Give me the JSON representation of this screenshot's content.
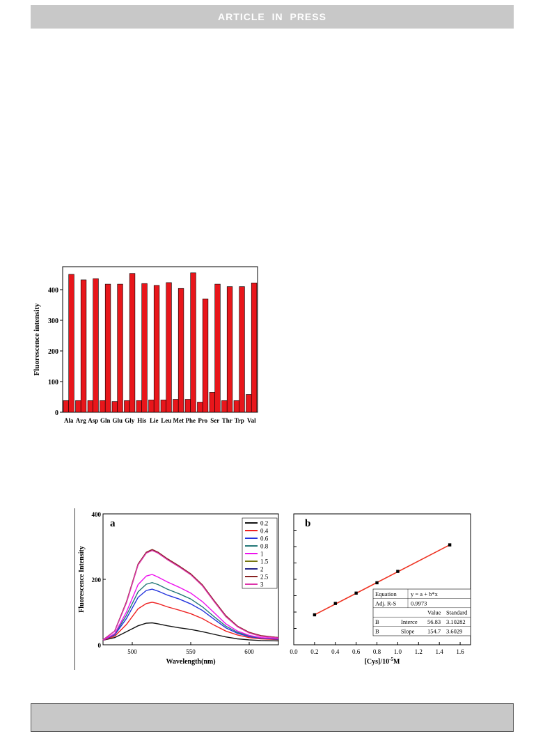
{
  "header": {
    "banner": "ARTICLE IN PRESS"
  },
  "chart_data": [
    {
      "type": "bar",
      "ylabel": "Fluorescence intensity",
      "xlabel": "",
      "ylim": [
        0,
        475
      ],
      "yticks": [
        0,
        100,
        200,
        300,
        400
      ],
      "categories": [
        "Ala",
        "Arg",
        "Asp",
        "Gln",
        "Glu",
        "Gly",
        "His",
        "Lie",
        "Leu",
        "Met",
        "Phe",
        "Pro",
        "Ser",
        "Thr",
        "Trp",
        "Val"
      ],
      "series": [
        {
          "values": [
            38,
            38,
            38,
            38,
            35,
            38,
            38,
            40,
            40,
            42,
            42,
            33,
            65,
            38,
            38,
            58
          ]
        },
        {
          "values": [
            450,
            432,
            436,
            418,
            418,
            453,
            420,
            414,
            423,
            404,
            455,
            370,
            418,
            410,
            410,
            422
          ]
        }
      ],
      "grid": false,
      "color": "#e8161b"
    },
    {
      "type": "line",
      "panel_label": "a",
      "xlabel": "Wavelength(nm)",
      "ylabel": "Fluorescence Intensity",
      "xlim": [
        475,
        625
      ],
      "ylim": [
        0,
        400
      ],
      "xticks": [
        500,
        550,
        600
      ],
      "yticks": [
        0,
        200,
        400
      ],
      "legend_position": "top-right",
      "x": [
        475,
        485,
        495,
        505,
        512,
        517,
        522,
        530,
        540,
        550,
        560,
        570,
        580,
        590,
        600,
        610,
        625
      ],
      "series": [
        {
          "name": "0.2",
          "color": "#111111",
          "values": [
            14,
            22,
            40,
            58,
            66,
            67,
            64,
            58,
            52,
            47,
            40,
            32,
            24,
            18,
            15,
            13,
            12
          ]
        },
        {
          "name": "0.4",
          "color": "#ee2222",
          "values": [
            14,
            26,
            62,
            110,
            126,
            130,
            126,
            116,
            106,
            95,
            80,
            60,
            42,
            30,
            22,
            18,
            16
          ]
        },
        {
          "name": "0.6",
          "color": "#2233dd",
          "values": [
            14,
            30,
            80,
            145,
            166,
            170,
            164,
            152,
            140,
            125,
            105,
            78,
            52,
            35,
            25,
            20,
            17
          ]
        },
        {
          "name": "0.8",
          "color": "#227777",
          "values": [
            14,
            32,
            90,
            162,
            185,
            190,
            184,
            170,
            156,
            140,
            116,
            86,
            57,
            38,
            27,
            21,
            18
          ]
        },
        {
          "name": "1",
          "color": "#ee11ee",
          "values": [
            14,
            34,
            100,
            184,
            210,
            215,
            207,
            192,
            176,
            158,
            132,
            98,
            64,
            42,
            29,
            22,
            19
          ]
        },
        {
          "name": "1.5",
          "color": "#777711",
          "values": [
            15,
            42,
            130,
            246,
            282,
            290,
            282,
            262,
            240,
            216,
            182,
            134,
            88,
            56,
            37,
            27,
            22
          ]
        },
        {
          "name": "2",
          "color": "#222288",
          "values": [
            15,
            42,
            129,
            245,
            281,
            289,
            281,
            261,
            239,
            215,
            181,
            133,
            87,
            56,
            37,
            27,
            22
          ]
        },
        {
          "name": "2.5",
          "color": "#882222",
          "values": [
            15,
            42,
            131,
            247,
            283,
            291,
            283,
            263,
            241,
            217,
            183,
            135,
            89,
            57,
            38,
            28,
            22
          ]
        },
        {
          "name": "3",
          "color": "#dd33aa",
          "values": [
            15,
            42,
            128,
            244,
            280,
            288,
            280,
            260,
            238,
            214,
            180,
            132,
            86,
            55,
            36,
            26,
            21
          ]
        }
      ]
    },
    {
      "type": "scatter",
      "panel_label": "b",
      "xlabel_prefix": "[Cys]/10",
      "xlabel_exp": "-5",
      "xlabel_suffix": "M",
      "xlim": [
        0.0,
        1.7
      ],
      "ylim": [
        0,
        380
      ],
      "xticks": [
        "0.0",
        "0.2",
        "0.4",
        "0.6",
        "0.8",
        "1.0",
        "1.2",
        "1.4",
        "1.6"
      ],
      "points": {
        "x": [
          0.2,
          0.4,
          0.6,
          0.8,
          1.0,
          1.5
        ],
        "y": [
          87,
          120,
          150,
          180,
          213,
          290
        ]
      },
      "fit": {
        "intercept": 56.83,
        "slope": 154.7,
        "color": "#ee3322"
      },
      "stats": {
        "equation_label": "Equation",
        "equation": "y = a + b*x",
        "r_label": "Adj. R-S",
        "r_value": "0.9973",
        "col_value": "Value",
        "col_standard": "Standard",
        "rows": [
          {
            "param": "B",
            "name": "Interce",
            "value": "56.83",
            "std": "3.10282"
          },
          {
            "param": "B",
            "name": "Slope",
            "value": "154.7",
            "std": "3.6029"
          }
        ]
      }
    }
  ]
}
